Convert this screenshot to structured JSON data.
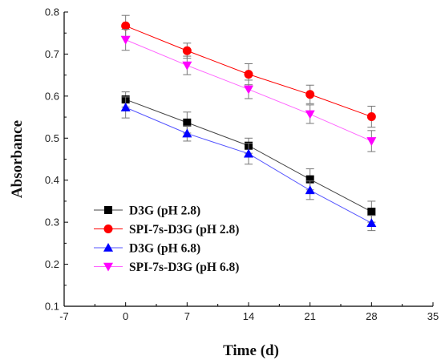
{
  "chart_data": {
    "type": "line",
    "xlabel": "Time (d)",
    "ylabel": "Absorbance",
    "xlim": [
      -7,
      35
    ],
    "ylim": [
      0.1,
      0.8
    ],
    "xticks": [
      "-7",
      "0",
      "7",
      "14",
      "21",
      "28",
      "35"
    ],
    "yticks": [
      "0.1",
      "0.2",
      "0.3",
      "0.4",
      "0.5",
      "0.6",
      "0.7",
      "0.8"
    ],
    "x": [
      0,
      7,
      14,
      21,
      28
    ],
    "legend_position": "bottom-left",
    "grid": false,
    "series": [
      {
        "name": "D3G (pH 2.8)",
        "marker": "square",
        "color": "#000000",
        "line_color": "#444444",
        "values": [
          0.592,
          0.537,
          0.482,
          0.402,
          0.325
        ],
        "errors": [
          0.018,
          0.025,
          0.018,
          0.025,
          0.025
        ]
      },
      {
        "name": "SPI-7s-D3G (pH 2.8)",
        "marker": "circle",
        "color": "#ff0000",
        "line_color": "#ff0000",
        "values": [
          0.767,
          0.708,
          0.652,
          0.604,
          0.551
        ],
        "errors": [
          0.025,
          0.018,
          0.025,
          0.022,
          0.025
        ]
      },
      {
        "name": "D3G (pH 6.8)",
        "marker": "triangle-up",
        "color": "#0000ff",
        "line_color": "#5555ff",
        "values": [
          0.573,
          0.511,
          0.463,
          0.376,
          0.298
        ],
        "errors": [
          0.025,
          0.018,
          0.025,
          0.022,
          0.018
        ]
      },
      {
        "name": "SPI-7s-D3G (pH 6.8)",
        "marker": "triangle-down",
        "color": "#ff00ff",
        "line_color": "#ff66ff",
        "values": [
          0.734,
          0.673,
          0.616,
          0.557,
          0.493
        ],
        "errors": [
          0.025,
          0.022,
          0.022,
          0.022,
          0.025
        ]
      }
    ]
  }
}
